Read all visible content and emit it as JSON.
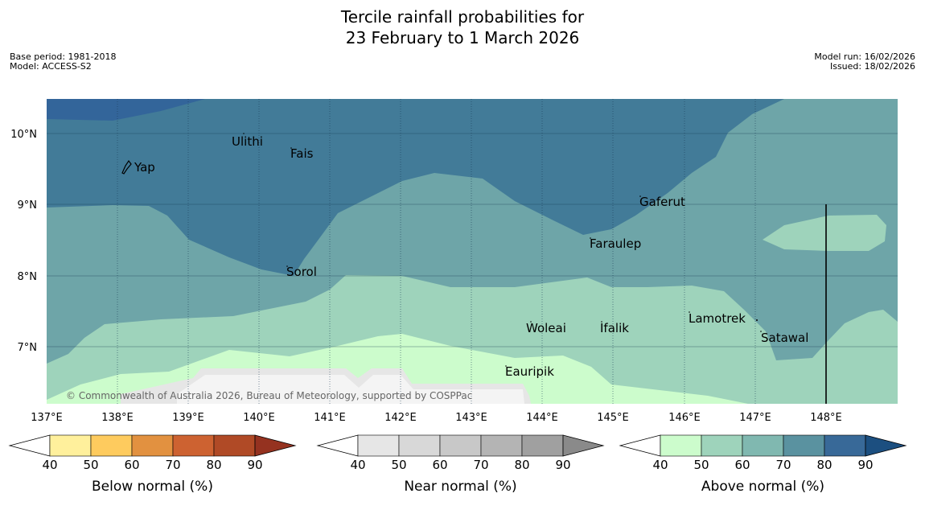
{
  "title": {
    "line1": "Tercile rainfall probabilities for",
    "line2": "23 February to 1 March 2026"
  },
  "meta": {
    "base_period": "Base period: 1981-2018",
    "model": "Model: ACCESS-S2",
    "model_run": "Model run: 16/02/2026",
    "issued": "Issued: 18/02/2026"
  },
  "map": {
    "lat_labels": [
      "10°N",
      "9°N",
      "8°N",
      "7°N"
    ],
    "lon_labels": [
      "137°E",
      "138°E",
      "139°E",
      "140°E",
      "141°E",
      "142°E",
      "143°E",
      "144°E",
      "145°E",
      "146°E",
      "147°E",
      "148°E"
    ],
    "places": [
      "Yap",
      "Ulithi",
      "Fais",
      "Sorol",
      "Gaferut",
      "Faraulep",
      "Woleai",
      "Ifalik",
      "Lamotrek",
      "Satawal",
      "Eauripik"
    ],
    "copyright": "© Commonwealth of Australia 2026, Bureau of Meteorology, supported by COSPPac"
  },
  "colorbars": [
    {
      "label": "Below normal (%)",
      "ticks": [
        "40",
        "50",
        "60",
        "70",
        "80",
        "90"
      ],
      "colors": [
        "#fff09c",
        "#fecb5e",
        "#e29140",
        "#cd6231",
        "#b04a26",
        "#953220"
      ]
    },
    {
      "label": "Near normal (%)",
      "ticks": [
        "40",
        "50",
        "60",
        "70",
        "80",
        "90"
      ],
      "colors": [
        "#e6e6e6",
        "#d8d8d8",
        "#c8c8c8",
        "#b4b4b4",
        "#a0a0a0",
        "#8a8a8a"
      ]
    },
    {
      "label": "Above normal (%)",
      "ticks": [
        "40",
        "50",
        "60",
        "70",
        "80",
        "90"
      ],
      "colors": [
        "#ccfccc",
        "#9ed3bb",
        "#80b8b0",
        "#5a92a0",
        "#386998",
        "#1c4f80"
      ]
    }
  ],
  "colors": {
    "above_50": "#9ed3bb",
    "above_60": "#6ea5a8",
    "above_70": "#427b98",
    "above_80": "#33659a",
    "above_40": "#ccfccc",
    "near_40": "#e6e6e6"
  }
}
